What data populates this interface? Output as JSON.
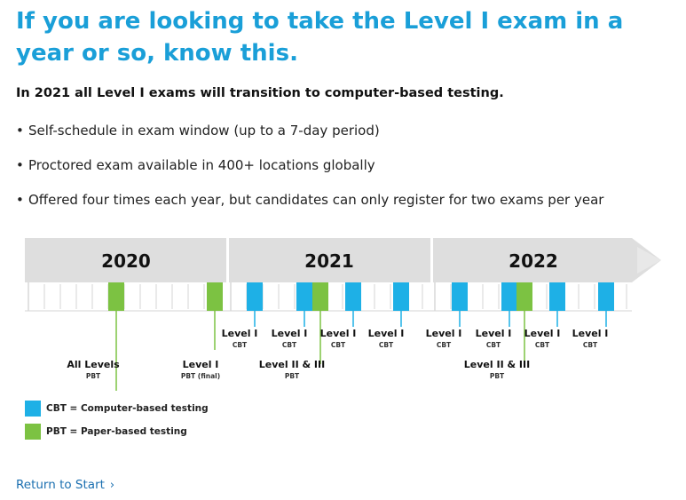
{
  "headline": "If you are looking to take the Level I exam in a year or so, know this.",
  "subhead": "In 2021 all Level I exams will transition to computer-based testing.",
  "bullets": [
    "Self-schedule in exam window (up to a 7-day period)",
    "Proctored exam available in 400+ locations globally",
    "Offered four times each year, but candidates can only register for two exams per year"
  ],
  "bullet_glyph": "•",
  "colors": {
    "cbt": "#1eb0e6",
    "pbt": "#7cc242",
    "headline": "#1a9fd8",
    "band": "#e0e0e0",
    "link": "#1a6fb0"
  },
  "timeline": {
    "years": [
      "2020",
      "2021",
      "2022"
    ],
    "marks": [
      {
        "type": "pbt",
        "label1": "All Levels",
        "label2": "PBT"
      },
      {
        "type": "pbt",
        "label1": "Level I",
        "label2": "PBT (final)"
      },
      {
        "type": "cbt",
        "label1": "Level I",
        "label2": "CBT"
      },
      {
        "type": "cbt",
        "label1": "Level I",
        "label2": "CBT"
      },
      {
        "type": "pbt",
        "label1": "Level II & III",
        "label2": "PBT"
      },
      {
        "type": "cbt",
        "label1": "Level I",
        "label2": "CBT"
      },
      {
        "type": "cbt",
        "label1": "Level I",
        "label2": "CBT"
      },
      {
        "type": "cbt",
        "label1": "Level I",
        "label2": "CBT"
      },
      {
        "type": "cbt",
        "label1": "Level I",
        "label2": "CBT"
      },
      {
        "type": "pbt",
        "label1": "Level II & III",
        "label2": "PBT"
      },
      {
        "type": "cbt",
        "label1": "Level I",
        "label2": "CBT"
      },
      {
        "type": "cbt",
        "label1": "Level I",
        "label2": "CBT"
      }
    ]
  },
  "legend": {
    "cbt": "CBT = Computer-based testing",
    "pbt": "PBT = Paper-based testing"
  },
  "return_link": {
    "label": "Return to Start",
    "icon": "chevron-right-icon",
    "glyph": "›"
  }
}
